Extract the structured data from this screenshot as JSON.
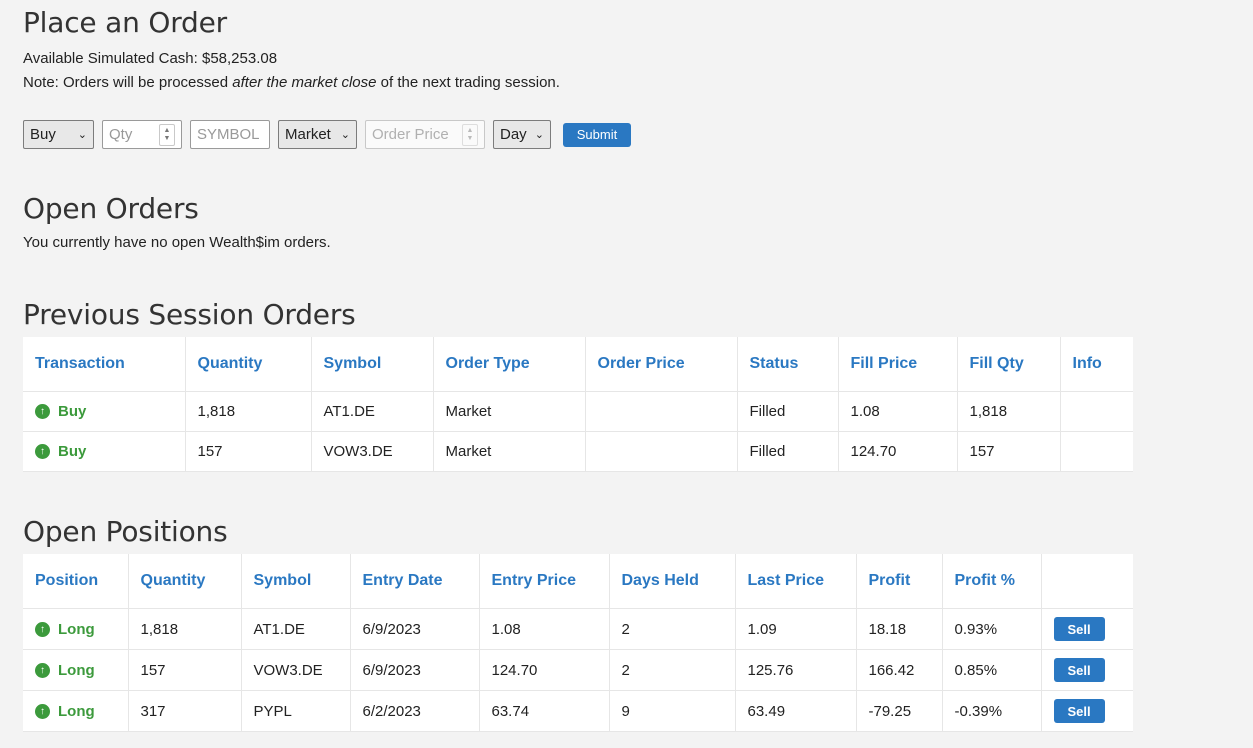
{
  "place_order": {
    "title": "Place an Order",
    "cash_text": "Available Simulated Cash: $58,253.08",
    "note_prefix": "Note: Orders will be processed ",
    "note_emphasis": "after the market close",
    "note_suffix": " of the next trading session.",
    "form": {
      "action_value": "Buy",
      "qty_placeholder": "Qty",
      "symbol_placeholder": "SYMBOL",
      "order_type_value": "Market",
      "price_placeholder": "Order Price",
      "duration_value": "Day",
      "submit_label": "Submit"
    }
  },
  "open_orders": {
    "title": "Open Orders",
    "message": "You currently have no open Wealth$im orders."
  },
  "previous_orders": {
    "title": "Previous Session Orders",
    "columns": [
      "Transaction",
      "Quantity",
      "Symbol",
      "Order Type",
      "Order Price",
      "Status",
      "Fill Price",
      "Fill Qty",
      "Info"
    ],
    "rows": [
      {
        "transaction": "Buy",
        "quantity": "1,818",
        "symbol": "AT1.DE",
        "order_type": "Market",
        "order_price": "",
        "status": "Filled",
        "fill_price": "1.08",
        "fill_qty": "1,818",
        "info": ""
      },
      {
        "transaction": "Buy",
        "quantity": "157",
        "symbol": "VOW3.DE",
        "order_type": "Market",
        "order_price": "",
        "status": "Filled",
        "fill_price": "124.70",
        "fill_qty": "157",
        "info": ""
      }
    ]
  },
  "open_positions": {
    "title": "Open Positions",
    "columns": [
      "Position",
      "Quantity",
      "Symbol",
      "Entry Date",
      "Entry Price",
      "Days Held",
      "Last Price",
      "Profit",
      "Profit %",
      ""
    ],
    "sell_label": "Sell",
    "rows": [
      {
        "position": "Long",
        "quantity": "1,818",
        "symbol": "AT1.DE",
        "entry_date": "6/9/2023",
        "entry_price": "1.08",
        "days_held": "2",
        "last_price": "1.09",
        "profit": "18.18",
        "profit_pct": "0.93%",
        "profit_sign": "pos"
      },
      {
        "position": "Long",
        "quantity": "157",
        "symbol": "VOW3.DE",
        "entry_date": "6/9/2023",
        "entry_price": "124.70",
        "days_held": "2",
        "last_price": "125.76",
        "profit": "166.42",
        "profit_pct": "0.85%",
        "profit_sign": "pos"
      },
      {
        "position": "Long",
        "quantity": "317",
        "symbol": "PYPL",
        "entry_date": "6/2/2023",
        "entry_price": "63.74",
        "days_held": "9",
        "last_price": "63.49",
        "profit": "-79.25",
        "profit_pct": "-0.39%",
        "profit_sign": "neg"
      }
    ]
  },
  "colors": {
    "accent": "#2a78c2",
    "positive": "#2a8a2a",
    "negative": "#d21a1a",
    "buy_green": "#3c9a3c"
  }
}
